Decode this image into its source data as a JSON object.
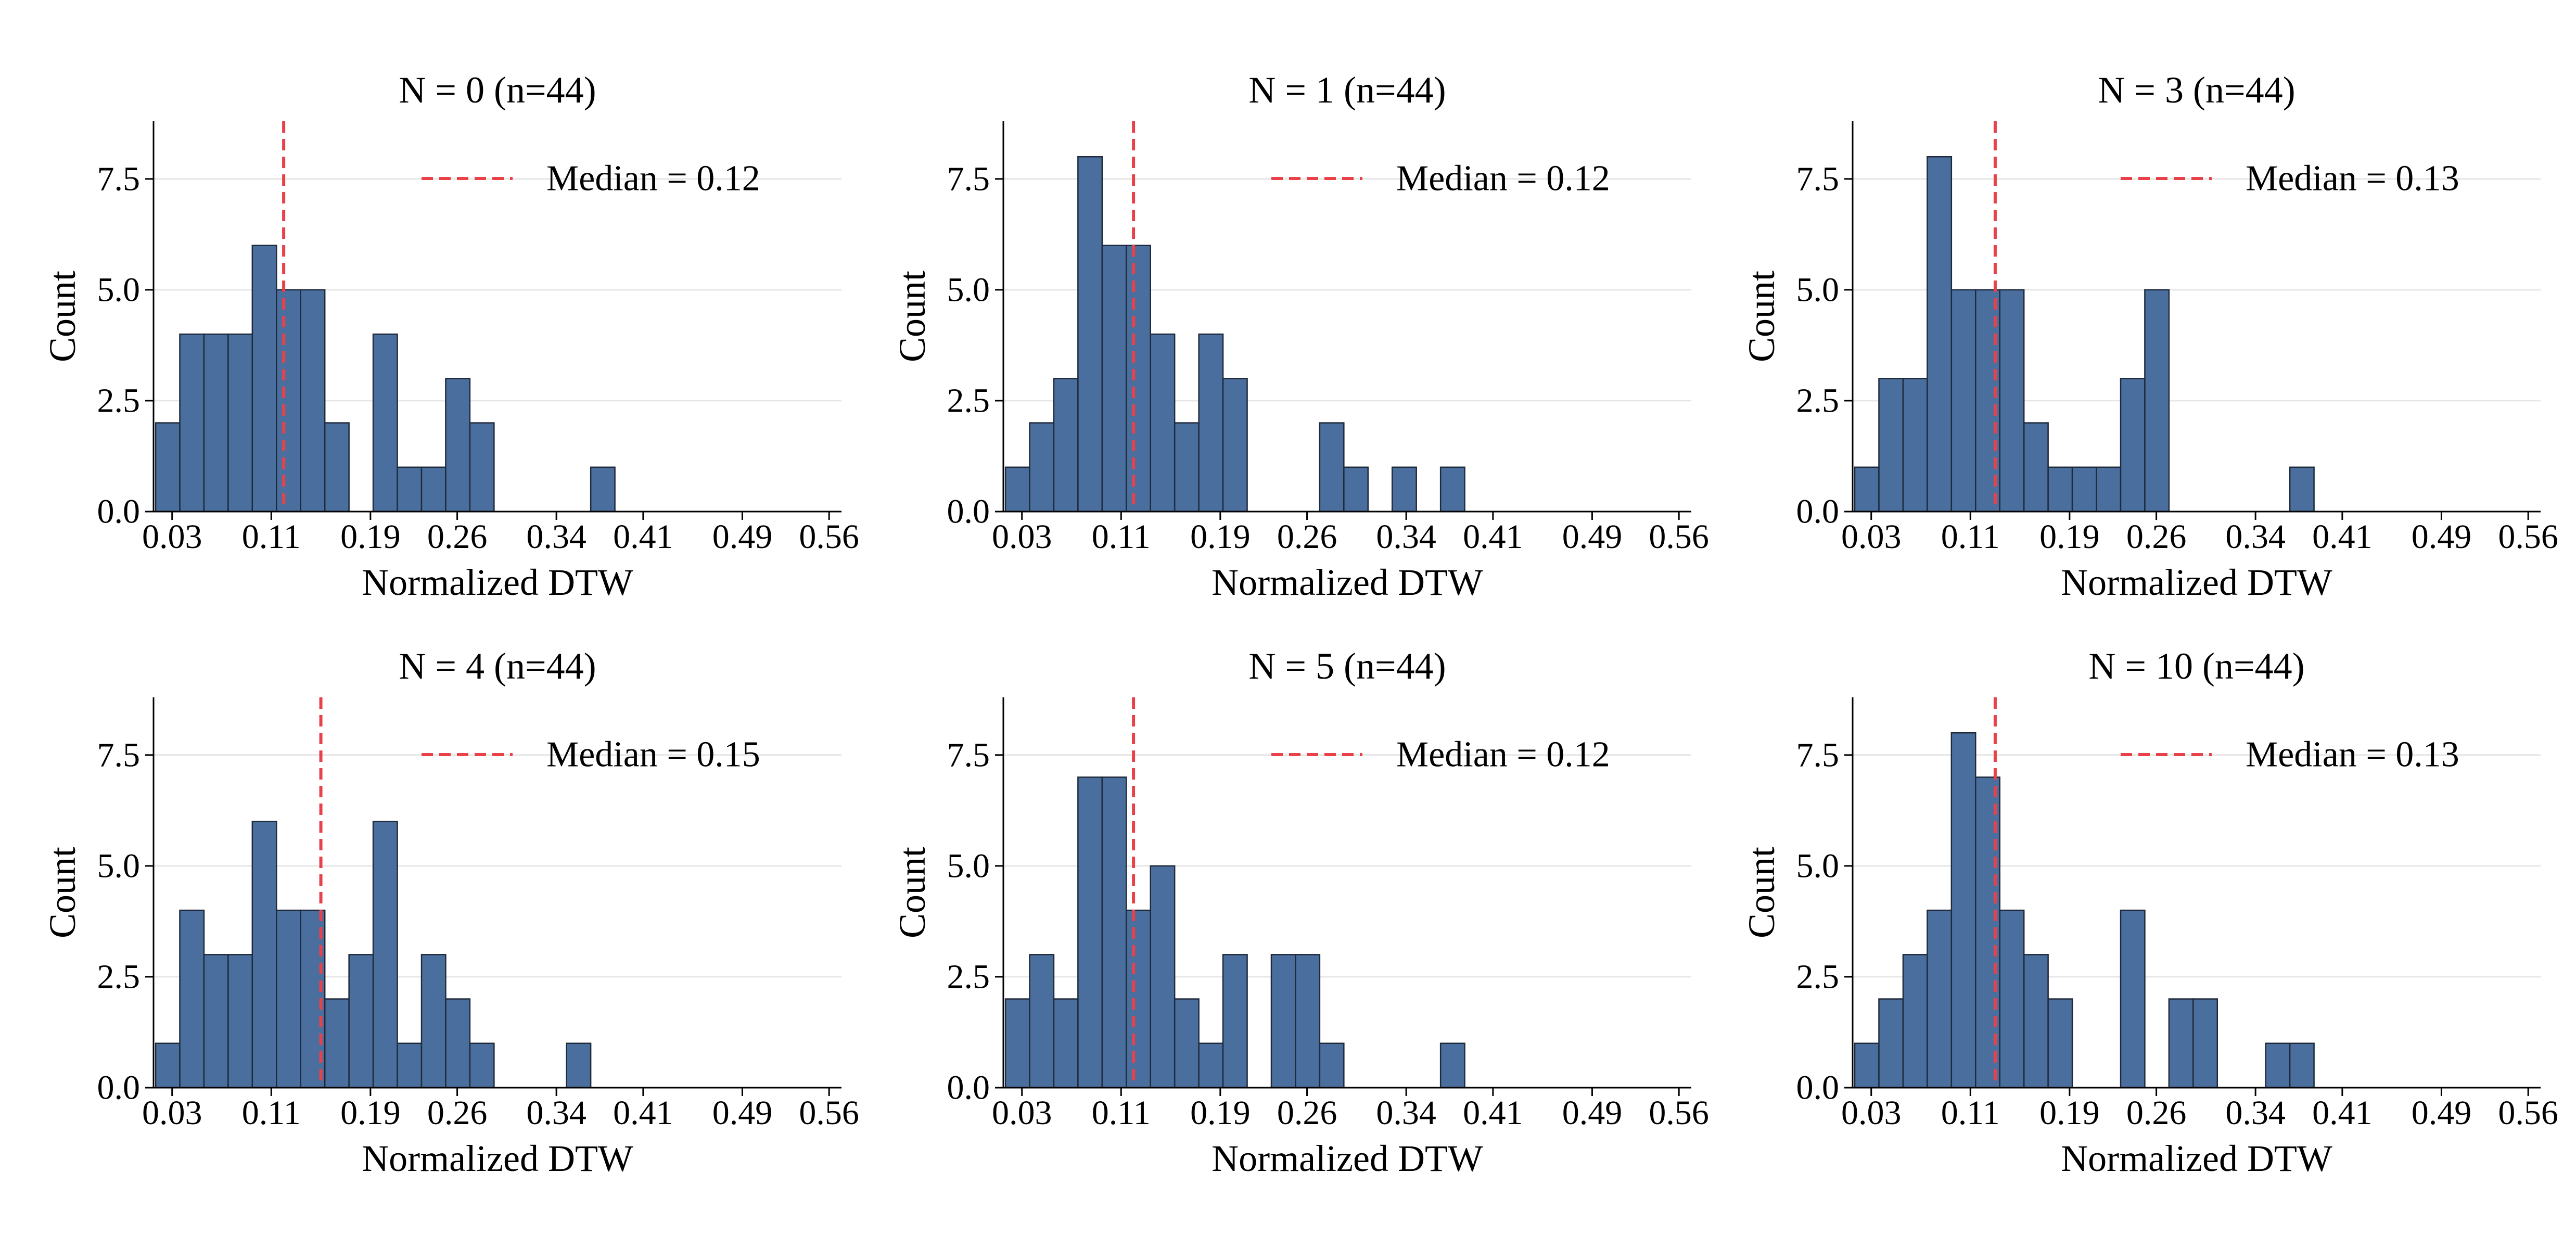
{
  "figure": {
    "background": "#ffffff"
  },
  "style": {
    "bar_fill": "#4a6f9f",
    "bar_edge": "#1f2a3a",
    "median_color": "#e8414a",
    "grid_color": "#e6e6e6",
    "axis_color": "#000000"
  },
  "chart_data": [
    {
      "type": "bar",
      "title": "N = 0  (n=44)",
      "xlabel": "Normalized DTW",
      "ylabel": "Count",
      "bin_start": 0.0167,
      "bin_width": 0.0195,
      "values": [
        2,
        4,
        4,
        4,
        6,
        5,
        5,
        2,
        0,
        4,
        1,
        1,
        3,
        2,
        0,
        0,
        0,
        0,
        1,
        0,
        0,
        0,
        0,
        0,
        0,
        0
      ],
      "median": 0.12,
      "legend": "Median = 0.12",
      "xlim": [
        0.015,
        0.57
      ],
      "ylim": [
        0,
        8.8
      ],
      "xticks": [
        0.03,
        0.11,
        0.19,
        0.26,
        0.34,
        0.41,
        0.49,
        0.56
      ],
      "xtick_labels": [
        "0.03",
        "0.11",
        "0.19",
        "0.26",
        "0.34",
        "0.41",
        "0.49",
        "0.56"
      ],
      "yticks": [
        0,
        2.5,
        5,
        7.5
      ],
      "ytick_labels": [
        "0.0",
        "2.5",
        "5.0",
        "7.5"
      ],
      "grid": "horizontal",
      "legend_position": "upper right"
    },
    {
      "type": "bar",
      "title": "N = 1  (n=44)",
      "xlabel": "Normalized DTW",
      "ylabel": "Count",
      "bin_start": 0.0167,
      "bin_width": 0.0195,
      "values": [
        1,
        2,
        3,
        8,
        6,
        6,
        4,
        2,
        4,
        3,
        0,
        0,
        0,
        2,
        1,
        0,
        1,
        0,
        1,
        0,
        0,
        0,
        0,
        0,
        0,
        0
      ],
      "median": 0.12,
      "legend": "Median = 0.12",
      "xlim": [
        0.015,
        0.57
      ],
      "ylim": [
        0,
        8.8
      ],
      "xticks": [
        0.03,
        0.11,
        0.19,
        0.26,
        0.34,
        0.41,
        0.49,
        0.56
      ],
      "xtick_labels": [
        "0.03",
        "0.11",
        "0.19",
        "0.26",
        "0.34",
        "0.41",
        "0.49",
        "0.56"
      ],
      "yticks": [
        0,
        2.5,
        5,
        7.5
      ],
      "ytick_labels": [
        "0.0",
        "2.5",
        "5.0",
        "7.5"
      ],
      "grid": "horizontal",
      "legend_position": "upper right"
    },
    {
      "type": "bar",
      "title": "N = 3  (n=44)",
      "xlabel": "Normalized DTW",
      "ylabel": "Count",
      "bin_start": 0.0167,
      "bin_width": 0.0195,
      "values": [
        1,
        3,
        3,
        8,
        5,
        5,
        5,
        2,
        1,
        1,
        1,
        3,
        5,
        0,
        0,
        0,
        0,
        0,
        1,
        0,
        0,
        0,
        0,
        0,
        0,
        0
      ],
      "median": 0.13,
      "legend": "Median = 0.13",
      "xlim": [
        0.015,
        0.57
      ],
      "ylim": [
        0,
        8.8
      ],
      "xticks": [
        0.03,
        0.11,
        0.19,
        0.26,
        0.34,
        0.41,
        0.49,
        0.56
      ],
      "xtick_labels": [
        "0.03",
        "0.11",
        "0.19",
        "0.26",
        "0.34",
        "0.41",
        "0.49",
        "0.56"
      ],
      "yticks": [
        0,
        2.5,
        5,
        7.5
      ],
      "ytick_labels": [
        "0.0",
        "2.5",
        "5.0",
        "7.5"
      ],
      "grid": "horizontal",
      "legend_position": "upper right"
    },
    {
      "type": "bar",
      "title": "N = 4  (n=44)",
      "xlabel": "Normalized DTW",
      "ylabel": "Count",
      "bin_start": 0.0167,
      "bin_width": 0.0195,
      "values": [
        1,
        4,
        3,
        3,
        6,
        4,
        4,
        2,
        3,
        6,
        1,
        3,
        2,
        1,
        0,
        0,
        0,
        1,
        0,
        0,
        0,
        0,
        0,
        0,
        0,
        0
      ],
      "median": 0.15,
      "legend": "Median = 0.15",
      "xlim": [
        0.015,
        0.57
      ],
      "ylim": [
        0,
        8.8
      ],
      "xticks": [
        0.03,
        0.11,
        0.19,
        0.26,
        0.34,
        0.41,
        0.49,
        0.56
      ],
      "xtick_labels": [
        "0.03",
        "0.11",
        "0.19",
        "0.26",
        "0.34",
        "0.41",
        "0.49",
        "0.56"
      ],
      "yticks": [
        0,
        2.5,
        5,
        7.5
      ],
      "ytick_labels": [
        "0.0",
        "2.5",
        "5.0",
        "7.5"
      ],
      "grid": "horizontal",
      "legend_position": "upper right"
    },
    {
      "type": "bar",
      "title": "N = 5  (n=44)",
      "xlabel": "Normalized DTW",
      "ylabel": "Count",
      "bin_start": 0.0167,
      "bin_width": 0.0195,
      "values": [
        2,
        3,
        2,
        7,
        7,
        4,
        5,
        2,
        1,
        3,
        0,
        3,
        3,
        1,
        0,
        0,
        0,
        0,
        1,
        0,
        0,
        0,
        0,
        0,
        0,
        0
      ],
      "median": 0.12,
      "legend": "Median = 0.12",
      "xlim": [
        0.015,
        0.57
      ],
      "ylim": [
        0,
        8.8
      ],
      "xticks": [
        0.03,
        0.11,
        0.19,
        0.26,
        0.34,
        0.41,
        0.49,
        0.56
      ],
      "xtick_labels": [
        "0.03",
        "0.11",
        "0.19",
        "0.26",
        "0.34",
        "0.41",
        "0.49",
        "0.56"
      ],
      "yticks": [
        0,
        2.5,
        5,
        7.5
      ],
      "ytick_labels": [
        "0.0",
        "2.5",
        "5.0",
        "7.5"
      ],
      "grid": "horizontal",
      "legend_position": "upper right"
    },
    {
      "type": "bar",
      "title": "N = 10  (n=44)",
      "xlabel": "Normalized DTW",
      "ylabel": "Count",
      "bin_start": 0.0167,
      "bin_width": 0.0195,
      "values": [
        1,
        2,
        3,
        4,
        8,
        7,
        4,
        3,
        2,
        0,
        0,
        4,
        0,
        2,
        2,
        0,
        0,
        1,
        1,
        0,
        0,
        0,
        0,
        0,
        0,
        0
      ],
      "median": 0.13,
      "legend": "Median = 0.13",
      "xlim": [
        0.015,
        0.57
      ],
      "ylim": [
        0,
        8.8
      ],
      "xticks": [
        0.03,
        0.11,
        0.19,
        0.26,
        0.34,
        0.41,
        0.49,
        0.56
      ],
      "xtick_labels": [
        "0.03",
        "0.11",
        "0.19",
        "0.26",
        "0.34",
        "0.41",
        "0.49",
        "0.56"
      ],
      "yticks": [
        0,
        2.5,
        5,
        7.5
      ],
      "ytick_labels": [
        "0.0",
        "2.5",
        "5.0",
        "7.5"
      ],
      "grid": "horizontal",
      "legend_position": "upper right"
    }
  ]
}
